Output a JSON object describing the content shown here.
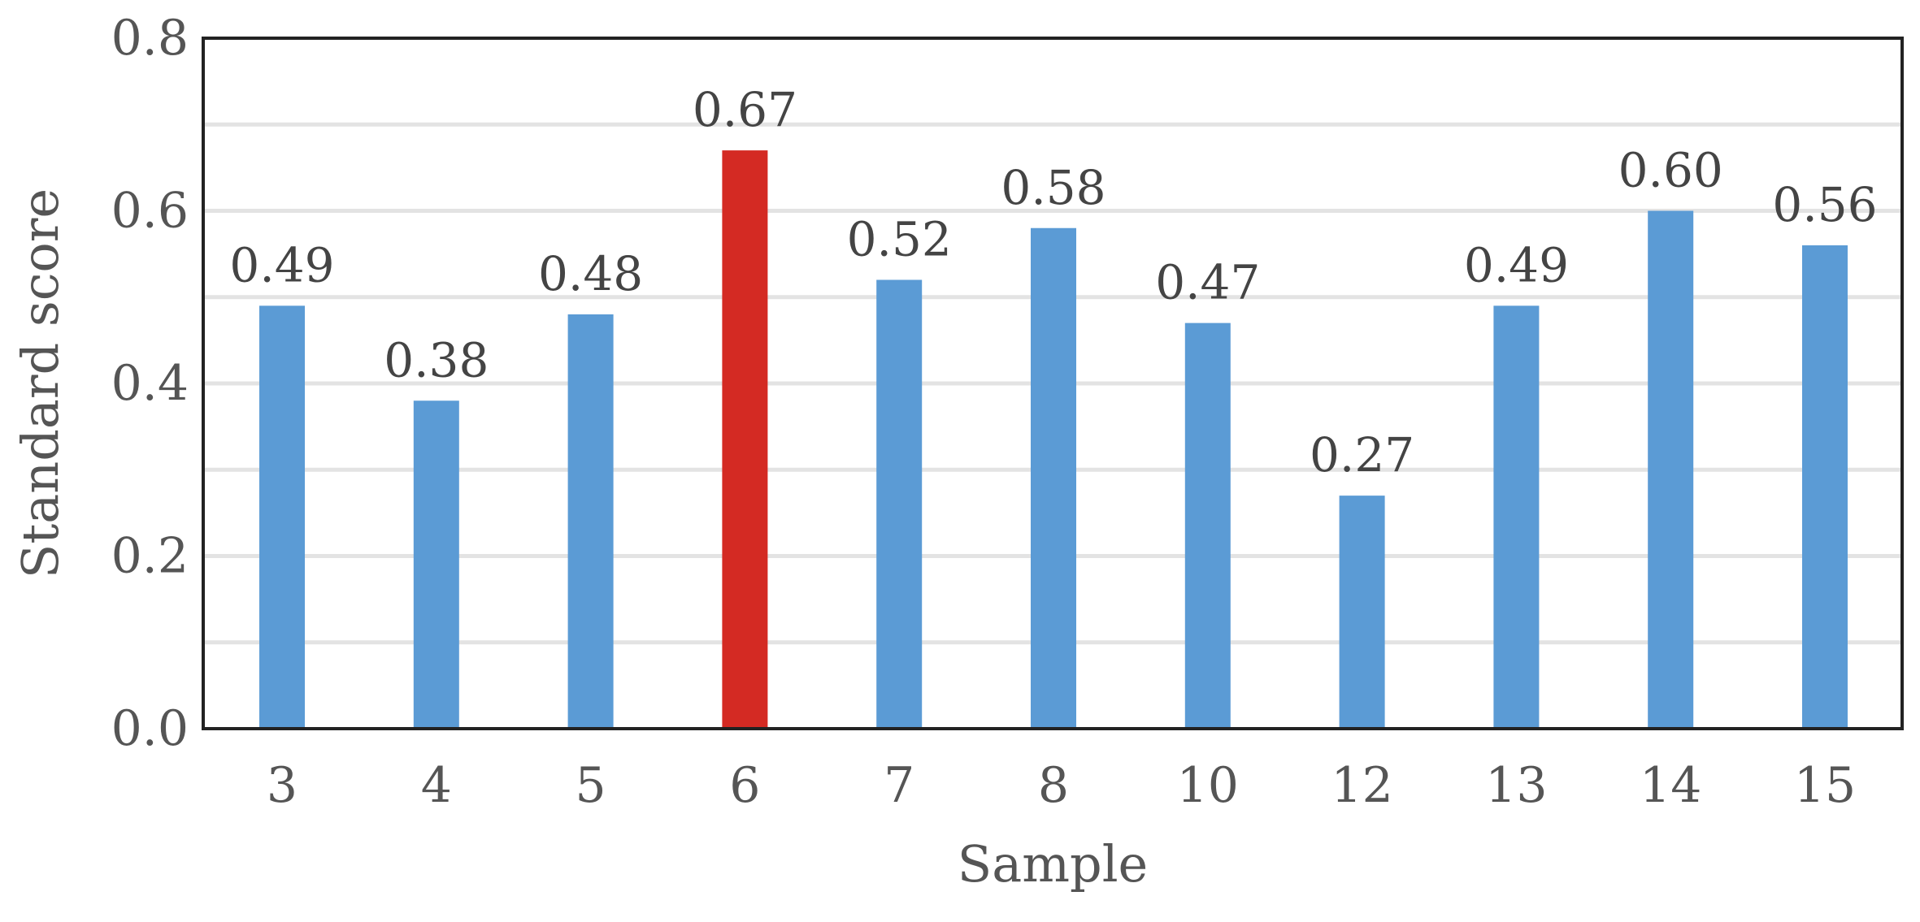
{
  "chart_data": {
    "type": "bar",
    "categories": [
      "3",
      "4",
      "5",
      "6",
      "7",
      "8",
      "10",
      "12",
      "13",
      "14",
      "15"
    ],
    "values": [
      0.49,
      0.38,
      0.48,
      0.67,
      0.52,
      0.58,
      0.47,
      0.27,
      0.49,
      0.6,
      0.56
    ],
    "value_labels": [
      "0.49",
      "0.38",
      "0.48",
      "0.67",
      "0.52",
      "0.58",
      "0.47",
      "0.27",
      "0.49",
      "0.60",
      "0.56"
    ],
    "highlight_index": 3,
    "xlabel": "Sample",
    "ylabel": "Standard score",
    "ylim": [
      0,
      0.8
    ],
    "yticks": [
      0.0,
      0.2,
      0.4,
      0.6,
      0.8
    ],
    "ytick_labels": [
      "0.0",
      "0.2",
      "0.4",
      "0.6",
      "0.8"
    ],
    "minor_gridlines": [
      0.1,
      0.3,
      0.5,
      0.7
    ],
    "grid": true,
    "colors": {
      "bar": "#5b9bd5",
      "highlight": "#d42a23",
      "gridline": "#e3e3e3",
      "frame": "#222222"
    }
  }
}
